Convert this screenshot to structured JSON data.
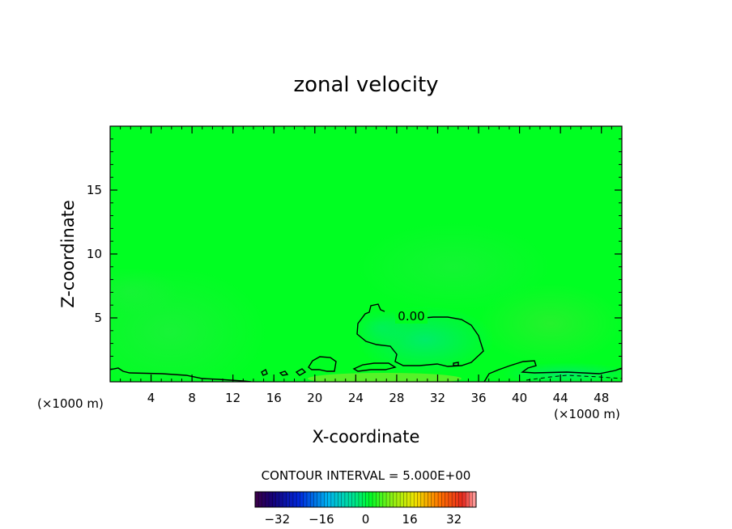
{
  "chart_data": {
    "type": "heatmap",
    "title": "zonal velocity",
    "xlabel": "X-coordinate",
    "ylabel": "Z-coordinate",
    "x_unit_label": "(×1000 m)",
    "x_unit_label_right": "(×1000 m)",
    "xlim": [
      0,
      50
    ],
    "ylim": [
      0,
      20
    ],
    "x_ticks": [
      4,
      8,
      12,
      16,
      20,
      24,
      28,
      32,
      36,
      40,
      44,
      48
    ],
    "x_tick_labels": [
      "4",
      "8",
      "12",
      "16",
      "20",
      "24",
      "28",
      "32",
      "36",
      "40",
      "44",
      "48"
    ],
    "y_ticks": [
      5,
      10,
      15
    ],
    "y_tick_labels": [
      "5",
      "10",
      "15"
    ],
    "contour_label": "0.00",
    "contour_interval_text": "CONTOUR INTERVAL = 5.000E+00",
    "colorbar": {
      "range": [
        -40,
        40
      ],
      "ticks": [
        -32,
        -16,
        0,
        16,
        32
      ],
      "tick_labels": [
        "−32",
        "−16",
        "0",
        "16",
        "32"
      ]
    },
    "colors": {
      "field": "#00ff22",
      "field_light": "#33f033",
      "field_cyan": "#00e87a",
      "contour": "#000000"
    }
  }
}
